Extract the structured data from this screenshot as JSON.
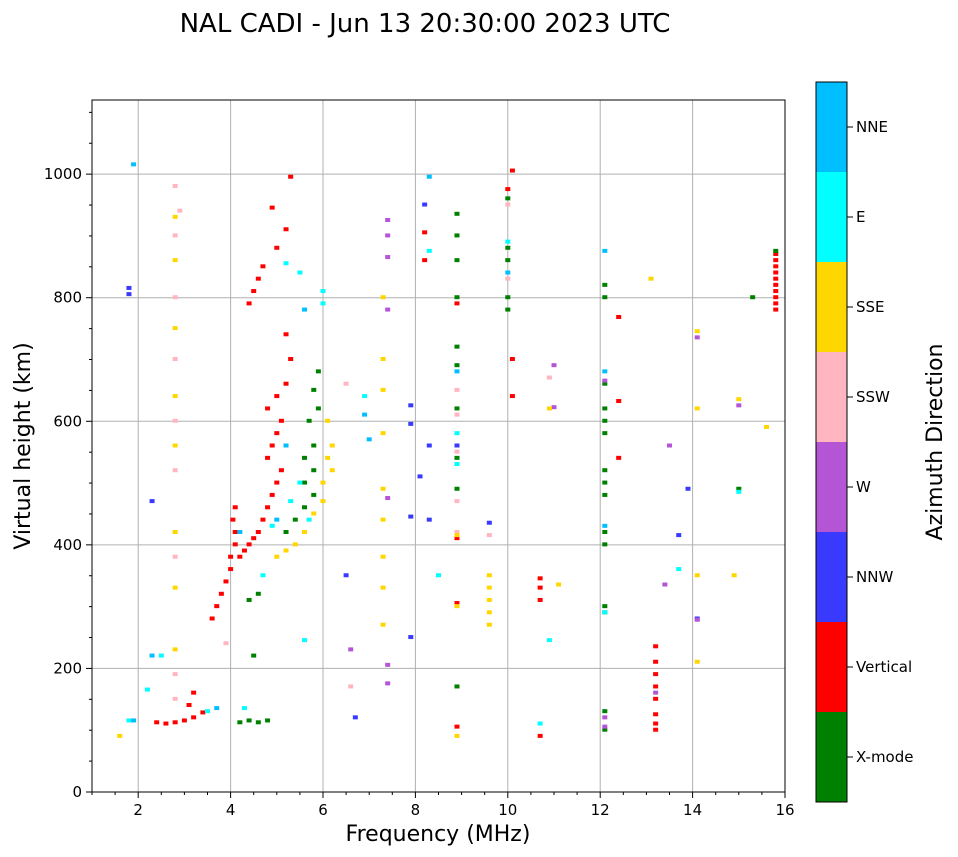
{
  "chart_data": {
    "type": "scatter",
    "title": "NAL CADI - Jun 13 20:30:00 2023 UTC",
    "xlabel": "Frequency (MHz)",
    "ylabel": "Virtual height (km)",
    "xlim": [
      1,
      16
    ],
    "ylim": [
      0,
      1120
    ],
    "xticks": [
      2,
      4,
      6,
      8,
      10,
      12,
      14,
      16
    ],
    "yticks": [
      0,
      200,
      400,
      600,
      800,
      1000
    ],
    "grid": true,
    "colorbar": {
      "label": "Azimuth Direction",
      "categories": [
        {
          "name": "X-mode",
          "color": "#008000"
        },
        {
          "name": "Vertical",
          "color": "#ff0000"
        },
        {
          "name": "NNW",
          "color": "#3a3aff"
        },
        {
          "name": "W",
          "color": "#b455d6"
        },
        {
          "name": "SSW",
          "color": "#ffb6c1"
        },
        {
          "name": "SSE",
          "color": "#ffd700"
        },
        {
          "name": "E",
          "color": "#00ffff"
        },
        {
          "name": "NNE",
          "color": "#00bfff"
        }
      ]
    },
    "series": [
      {
        "name": "Vertical",
        "color": "#ff0000",
        "points": [
          [
            2.4,
            112
          ],
          [
            2.6,
            110
          ],
          [
            2.8,
            112
          ],
          [
            3.0,
            115
          ],
          [
            3.2,
            120
          ],
          [
            3.4,
            128
          ],
          [
            3.2,
            160
          ],
          [
            3.1,
            140
          ],
          [
            3.6,
            280
          ],
          [
            3.7,
            300
          ],
          [
            3.8,
            320
          ],
          [
            3.9,
            340
          ],
          [
            4.0,
            360
          ],
          [
            4.0,
            380
          ],
          [
            4.1,
            400
          ],
          [
            4.1,
            420
          ],
          [
            4.05,
            440
          ],
          [
            4.1,
            460
          ],
          [
            4.2,
            380
          ],
          [
            4.3,
            390
          ],
          [
            4.4,
            400
          ],
          [
            4.5,
            410
          ],
          [
            4.6,
            420
          ],
          [
            4.7,
            440
          ],
          [
            4.8,
            460
          ],
          [
            4.9,
            480
          ],
          [
            5.0,
            500
          ],
          [
            5.1,
            520
          ],
          [
            4.8,
            540
          ],
          [
            4.9,
            560
          ],
          [
            5.0,
            580
          ],
          [
            5.1,
            600
          ],
          [
            4.8,
            620
          ],
          [
            5.0,
            640
          ],
          [
            5.2,
            660
          ],
          [
            5.3,
            700
          ],
          [
            5.2,
            740
          ],
          [
            4.4,
            790
          ],
          [
            4.5,
            810
          ],
          [
            4.6,
            830
          ],
          [
            4.7,
            850
          ],
          [
            5.0,
            880
          ],
          [
            5.2,
            910
          ],
          [
            4.9,
            945
          ],
          [
            5.3,
            995
          ],
          [
            8.2,
            860
          ],
          [
            8.2,
            905
          ],
          [
            10.0,
            975
          ],
          [
            10.1,
            1005
          ],
          [
            10.1,
            700
          ],
          [
            10.1,
            640
          ],
          [
            10.7,
            310
          ],
          [
            10.7,
            330
          ],
          [
            10.7,
            345
          ],
          [
            10.7,
            90
          ],
          [
            12.4,
            540
          ],
          [
            12.4,
            632
          ],
          [
            12.4,
            768
          ],
          [
            8.9,
            305
          ],
          [
            8.9,
            410
          ],
          [
            8.9,
            105
          ],
          [
            8.9,
            790
          ],
          [
            13.2,
            100
          ],
          [
            13.2,
            110
          ],
          [
            13.2,
            125
          ],
          [
            13.2,
            150
          ],
          [
            13.2,
            170
          ],
          [
            13.2,
            190
          ],
          [
            13.2,
            210
          ],
          [
            13.2,
            235
          ],
          [
            15.8,
            780
          ],
          [
            15.8,
            790
          ],
          [
            15.8,
            800
          ],
          [
            15.8,
            810
          ],
          [
            15.8,
            820
          ],
          [
            15.8,
            830
          ],
          [
            15.8,
            840
          ],
          [
            15.8,
            850
          ],
          [
            15.8,
            860
          ],
          [
            15.8,
            870
          ]
        ]
      },
      {
        "name": "X-mode",
        "color": "#008000",
        "points": [
          [
            4.2,
            112
          ],
          [
            4.4,
            115
          ],
          [
            4.6,
            112
          ],
          [
            4.8,
            115
          ],
          [
            4.5,
            220
          ],
          [
            4.6,
            320
          ],
          [
            4.4,
            310
          ],
          [
            5.2,
            420
          ],
          [
            5.4,
            440
          ],
          [
            5.6,
            460
          ],
          [
            5.8,
            480
          ],
          [
            5.6,
            500
          ],
          [
            5.8,
            520
          ],
          [
            5.6,
            540
          ],
          [
            5.8,
            560
          ],
          [
            5.7,
            600
          ],
          [
            5.9,
            620
          ],
          [
            5.8,
            650
          ],
          [
            5.9,
            680
          ],
          [
            8.9,
            170
          ],
          [
            8.9,
            490
          ],
          [
            8.9,
            540
          ],
          [
            8.9,
            620
          ],
          [
            8.9,
            690
          ],
          [
            8.9,
            720
          ],
          [
            8.9,
            800
          ],
          [
            8.9,
            860
          ],
          [
            8.9,
            900
          ],
          [
            8.9,
            935
          ],
          [
            10.0,
            780
          ],
          [
            10.0,
            800
          ],
          [
            10.0,
            860
          ],
          [
            10.0,
            880
          ],
          [
            10.0,
            960
          ],
          [
            12.1,
            100
          ],
          [
            12.1,
            130
          ],
          [
            12.1,
            290
          ],
          [
            12.1,
            300
          ],
          [
            12.1,
            400
          ],
          [
            12.1,
            420
          ],
          [
            12.1,
            480
          ],
          [
            12.1,
            500
          ],
          [
            12.1,
            520
          ],
          [
            12.1,
            580
          ],
          [
            12.1,
            600
          ],
          [
            12.1,
            620
          ],
          [
            12.1,
            660
          ],
          [
            12.1,
            800
          ],
          [
            12.1,
            820
          ],
          [
            15.0,
            490
          ],
          [
            15.3,
            800
          ],
          [
            15.8,
            875
          ]
        ]
      },
      {
        "name": "NNW",
        "color": "#3a3aff",
        "points": [
          [
            1.8,
            805
          ],
          [
            1.8,
            815
          ],
          [
            2.3,
            470
          ],
          [
            7.9,
            250
          ],
          [
            7.9,
            445
          ],
          [
            7.9,
            595
          ],
          [
            7.9,
            625
          ],
          [
            8.1,
            510
          ],
          [
            8.3,
            440
          ],
          [
            8.3,
            560
          ],
          [
            8.2,
            950
          ],
          [
            9.6,
            435
          ],
          [
            13.7,
            415
          ],
          [
            13.9,
            490
          ],
          [
            14.1,
            280
          ],
          [
            8.9,
            560
          ],
          [
            6.5,
            350
          ],
          [
            6.7,
            120
          ]
        ]
      },
      {
        "name": "W",
        "color": "#b455d6",
        "points": [
          [
            6.6,
            230
          ],
          [
            7.4,
            175
          ],
          [
            7.4,
            205
          ],
          [
            7.4,
            475
          ],
          [
            7.4,
            780
          ],
          [
            7.4,
            865
          ],
          [
            7.4,
            900
          ],
          [
            7.4,
            925
          ],
          [
            12.1,
            120
          ],
          [
            12.1,
            105
          ],
          [
            12.1,
            665
          ],
          [
            11.0,
            690
          ],
          [
            11.0,
            622
          ],
          [
            13.4,
            335
          ],
          [
            13.5,
            560
          ],
          [
            14.1,
            735
          ],
          [
            14.1,
            278
          ],
          [
            15.0,
            625
          ],
          [
            13.2,
            160
          ]
        ]
      },
      {
        "name": "SSW",
        "color": "#ffb6c1",
        "points": [
          [
            2.8,
            150
          ],
          [
            2.8,
            190
          ],
          [
            2.8,
            380
          ],
          [
            2.8,
            520
          ],
          [
            2.8,
            600
          ],
          [
            2.8,
            700
          ],
          [
            2.8,
            800
          ],
          [
            2.8,
            900
          ],
          [
            2.8,
            980
          ],
          [
            2.9,
            940
          ],
          [
            6.6,
            170
          ],
          [
            6.5,
            660
          ],
          [
            8.9,
            420
          ],
          [
            8.9,
            470
          ],
          [
            8.9,
            550
          ],
          [
            8.9,
            610
          ],
          [
            8.9,
            650
          ],
          [
            10.0,
            830
          ],
          [
            10.0,
            950
          ],
          [
            9.6,
            415
          ],
          [
            10.9,
            670
          ],
          [
            3.9,
            240
          ]
        ]
      },
      {
        "name": "SSE",
        "color": "#ffd700",
        "points": [
          [
            1.6,
            90
          ],
          [
            2.8,
            230
          ],
          [
            2.8,
            330
          ],
          [
            2.8,
            420
          ],
          [
            2.8,
            560
          ],
          [
            2.8,
            640
          ],
          [
            2.8,
            750
          ],
          [
            2.8,
            860
          ],
          [
            2.8,
            930
          ],
          [
            5.0,
            380
          ],
          [
            5.2,
            390
          ],
          [
            5.4,
            400
          ],
          [
            5.6,
            420
          ],
          [
            5.8,
            450
          ],
          [
            6.0,
            470
          ],
          [
            6.0,
            500
          ],
          [
            6.2,
            520
          ],
          [
            6.1,
            540
          ],
          [
            6.2,
            560
          ],
          [
            6.1,
            600
          ],
          [
            7.3,
            270
          ],
          [
            7.3,
            330
          ],
          [
            7.3,
            380
          ],
          [
            7.3,
            440
          ],
          [
            7.3,
            490
          ],
          [
            7.3,
            580
          ],
          [
            7.3,
            650
          ],
          [
            7.3,
            700
          ],
          [
            7.3,
            800
          ],
          [
            8.9,
            90
          ],
          [
            8.9,
            300
          ],
          [
            8.9,
            415
          ],
          [
            9.6,
            270
          ],
          [
            9.6,
            290
          ],
          [
            9.6,
            310
          ],
          [
            9.6,
            330
          ],
          [
            9.6,
            350
          ],
          [
            11.1,
            335
          ],
          [
            10.9,
            620
          ],
          [
            13.1,
            830
          ],
          [
            14.1,
            210
          ],
          [
            14.1,
            350
          ],
          [
            14.1,
            620
          ],
          [
            14.1,
            745
          ],
          [
            14.9,
            350
          ],
          [
            15.0,
            635
          ],
          [
            15.6,
            590
          ]
        ]
      },
      {
        "name": "E",
        "color": "#00ffff",
        "points": [
          [
            1.8,
            115
          ],
          [
            2.2,
            165
          ],
          [
            2.5,
            220
          ],
          [
            3.5,
            130
          ],
          [
            4.3,
            135
          ],
          [
            4.7,
            350
          ],
          [
            4.9,
            430
          ],
          [
            5.3,
            470
          ],
          [
            5.5,
            500
          ],
          [
            5.7,
            440
          ],
          [
            5.2,
            855
          ],
          [
            5.5,
            840
          ],
          [
            5.6,
            245
          ],
          [
            6.9,
            640
          ],
          [
            6.0,
            790
          ],
          [
            6.0,
            810
          ],
          [
            8.9,
            580
          ],
          [
            8.9,
            530
          ],
          [
            10.0,
            890
          ],
          [
            10.7,
            110
          ],
          [
            10.9,
            245
          ],
          [
            12.1,
            290
          ],
          [
            13.7,
            360
          ],
          [
            15.0,
            485
          ],
          [
            8.5,
            350
          ],
          [
            8.3,
            875
          ]
        ]
      },
      {
        "name": "NNE",
        "color": "#00bfff",
        "points": [
          [
            1.9,
            115
          ],
          [
            2.3,
            220
          ],
          [
            3.7,
            135
          ],
          [
            4.2,
            420
          ],
          [
            5.0,
            440
          ],
          [
            5.2,
            560
          ],
          [
            6.9,
            610
          ],
          [
            7.0,
            570
          ],
          [
            5.6,
            780
          ],
          [
            12.1,
            430
          ],
          [
            12.1,
            680
          ],
          [
            12.1,
            875
          ],
          [
            10.0,
            840
          ],
          [
            8.9,
            680
          ],
          [
            8.3,
            995
          ],
          [
            1.9,
            1015
          ]
        ]
      }
    ]
  }
}
